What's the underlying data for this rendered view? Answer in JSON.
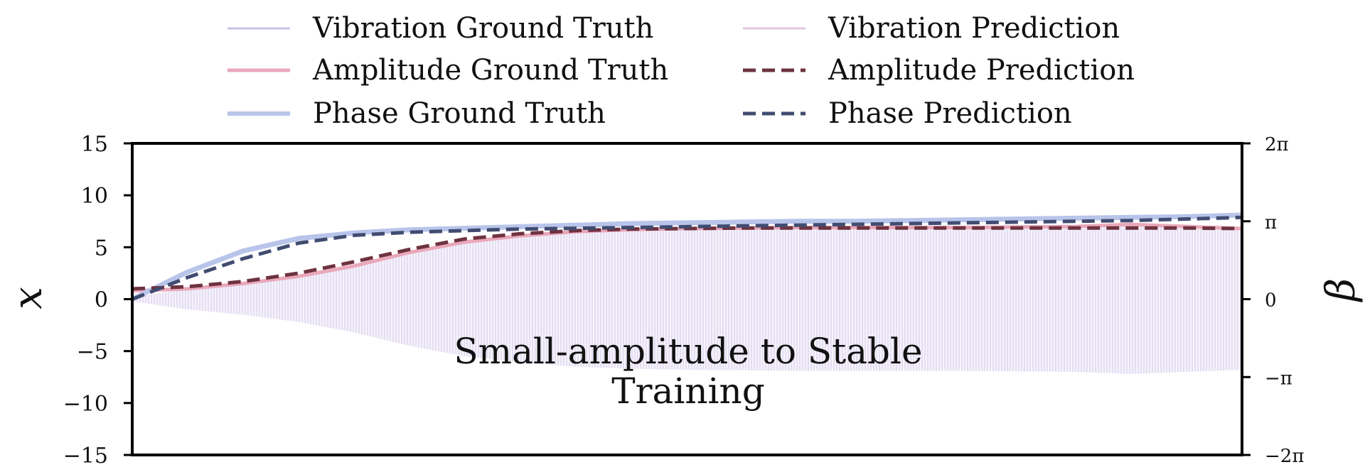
{
  "chart_data": {
    "type": "line",
    "title": "",
    "annotation": [
      "Small-amplitude to Stable",
      "Training"
    ],
    "xlabel": "",
    "ylabel": "x",
    "ylabel_right": "β",
    "ylim": [
      -15,
      15
    ],
    "ylim_right_in_pi": [
      -2,
      2
    ],
    "xlim": [
      0,
      1
    ],
    "y_ticks": [
      15,
      10,
      5,
      0,
      -5,
      -10,
      -15
    ],
    "y_tick_labels": [
      "15",
      "10",
      "5",
      "0",
      "−5",
      "−10",
      "−15"
    ],
    "y_right_ticks_in_pi": [
      2,
      1,
      0,
      -1,
      -2
    ],
    "y_right_tick_labels": [
      "2π",
      "π",
      "0",
      "−π",
      "−2π"
    ],
    "grid": false,
    "legend_position": "top-center",
    "legend": [
      {
        "label": "Vibration Ground Truth",
        "color": "#c9c3e6",
        "style": "solid"
      },
      {
        "label": "Vibration Prediction",
        "color": "#e3c6dc",
        "style": "solid"
      },
      {
        "label": "Amplitude Ground Truth",
        "color": "#eaa8bb",
        "style": "solid"
      },
      {
        "label": "Amplitude Prediction",
        "color": "#6e3340",
        "style": "dashed"
      },
      {
        "label": "Phase Ground Truth",
        "color": "#b8c4ea",
        "style": "solid"
      },
      {
        "label": "Phase Prediction",
        "color": "#414c71",
        "style": "dashed"
      }
    ],
    "series": [
      {
        "name": "Amplitude Ground Truth",
        "axis": "left",
        "color": "#eaa8bb",
        "x": [
          0,
          0.05,
          0.1,
          0.15,
          0.2,
          0.25,
          0.3,
          0.35,
          0.4,
          0.45,
          0.5,
          0.55,
          0.6,
          0.65,
          0.7,
          0.75,
          0.8,
          0.85,
          0.9,
          0.95,
          1.0
        ],
        "y": [
          0.8,
          1.0,
          1.5,
          2.2,
          3.2,
          4.5,
          5.5,
          6.1,
          6.5,
          6.7,
          6.8,
          6.85,
          6.9,
          6.9,
          6.9,
          6.9,
          6.95,
          7.0,
          7.2,
          7.0,
          6.8
        ]
      },
      {
        "name": "Amplitude Prediction",
        "axis": "left",
        "color": "#6e3340",
        "x": [
          0,
          0.05,
          0.1,
          0.15,
          0.2,
          0.25,
          0.3,
          0.35,
          0.4,
          0.45,
          0.5,
          0.55,
          0.6,
          0.65,
          0.7,
          0.75,
          0.8,
          0.85,
          0.9,
          0.95,
          1.0
        ],
        "y": [
          1.0,
          1.2,
          1.7,
          2.5,
          3.6,
          4.8,
          5.8,
          6.3,
          6.6,
          6.75,
          6.8,
          6.85,
          6.85,
          6.85,
          6.85,
          6.85,
          6.85,
          6.85,
          6.85,
          6.85,
          6.8
        ]
      },
      {
        "name": "Phase Ground Truth",
        "axis": "right",
        "color": "#b8c4ea",
        "x": [
          0,
          0.05,
          0.1,
          0.15,
          0.2,
          0.25,
          0.3,
          0.35,
          0.4,
          0.45,
          0.5,
          0.55,
          0.6,
          0.65,
          0.7,
          0.75,
          0.8,
          0.85,
          0.9,
          0.95,
          1.0
        ],
        "y_over_pi": [
          0.0,
          0.35,
          0.62,
          0.78,
          0.85,
          0.89,
          0.91,
          0.93,
          0.95,
          0.97,
          0.98,
          0.99,
          1.0,
          1.0,
          1.01,
          1.02,
          1.03,
          1.04,
          1.05,
          1.06,
          1.08
        ]
      },
      {
        "name": "Phase Prediction",
        "axis": "right",
        "color": "#414c71",
        "x": [
          0,
          0.05,
          0.1,
          0.15,
          0.2,
          0.25,
          0.3,
          0.35,
          0.4,
          0.45,
          0.5,
          0.55,
          0.6,
          0.65,
          0.7,
          0.75,
          0.8,
          0.85,
          0.9,
          0.95,
          1.0
        ],
        "y_over_pi": [
          0.0,
          0.28,
          0.52,
          0.72,
          0.82,
          0.86,
          0.88,
          0.9,
          0.91,
          0.92,
          0.93,
          0.94,
          0.95,
          0.96,
          0.97,
          0.98,
          0.99,
          1.0,
          1.01,
          1.03,
          1.05
        ]
      }
    ],
    "vibration_envelope": {
      "name": "Vibration Ground Truth / Vibration Prediction",
      "color": "#d9d0ec",
      "description_amplitude_follows": "Amplitude Ground Truth"
    }
  }
}
